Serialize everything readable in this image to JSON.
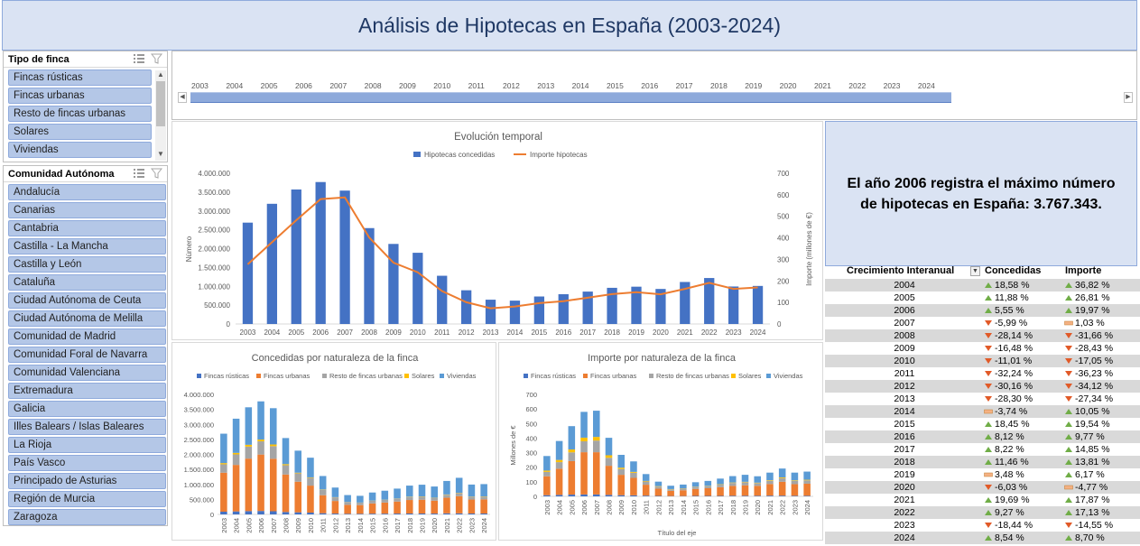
{
  "title": "Análisis de Hipotecas en España (2003-2024)",
  "slicer_tipo": {
    "header": "Tipo de finca",
    "items": [
      "Fincas rústicas",
      "Fincas urbanas",
      "Resto de fincas urbanas",
      "Solares",
      "Viviendas"
    ]
  },
  "slicer_ccaa": {
    "header": "Comunidad Autónoma",
    "items": [
      "Andalucía",
      "Canarias",
      "Cantabria",
      "Castilla - La Mancha",
      "Castilla y León",
      "Cataluña",
      "Ciudad Autónoma de Ceuta",
      "Ciudad Autónoma de Melilla",
      "Comunidad de Madrid",
      "Comunidad Foral de Navarra",
      "Comunidad Valenciana",
      "Extremadura",
      "Galicia",
      "Illes Balears / Islas Baleares",
      "La Rioja",
      "País Vasco",
      "Principado de Asturias",
      "Región de Murcia",
      "Zaragoza"
    ]
  },
  "timeline": {
    "years": [
      "2003",
      "2004",
      "2005",
      "2006",
      "2007",
      "2008",
      "2009",
      "2010",
      "2011",
      "2012",
      "2013",
      "2014",
      "2015",
      "2016",
      "2017",
      "2018",
      "2019",
      "2020",
      "2021",
      "2022",
      "2023",
      "2024"
    ]
  },
  "insight_text": "El año 2006 registra el máximo número de hipotecas en España: 3.767.343.",
  "colors": {
    "bar_blue": "#4472c4",
    "line_orange": "#ed7d31",
    "rusticas": "#4472c4",
    "urbanas": "#ed7d31",
    "resto": "#a5a5a5",
    "solares": "#ffc000",
    "viviendas": "#5b9bd5",
    "up": "#70ad47",
    "down": "#e15a28",
    "flat": "#f4b183"
  },
  "chart_data": [
    {
      "type": "bar",
      "title": "Evolución temporal",
      "categories": [
        "2003",
        "2004",
        "2005",
        "2006",
        "2007",
        "2008",
        "2009",
        "2010",
        "2011",
        "2012",
        "2013",
        "2014",
        "2015",
        "2016",
        "2017",
        "2018",
        "2019",
        "2020",
        "2021",
        "2022",
        "2023",
        "2024"
      ],
      "series": [
        {
          "name": "Hipotecas concedidas",
          "axis": "left",
          "type": "bar",
          "values": [
            2690000,
            3190000,
            3570000,
            3767343,
            3540000,
            2545000,
            2125000,
            1890000,
            1280000,
            895000,
            645000,
            620000,
            730000,
            790000,
            860000,
            960000,
            990000,
            930000,
            1115000,
            1220000,
            995000,
            1010000
          ]
        },
        {
          "name": "Importe hipotecas",
          "axis": "right",
          "type": "line",
          "values": [
            277,
            380,
            482,
            580,
            588,
            402,
            285,
            240,
            153,
            101,
            73,
            81,
            97,
            106,
            122,
            139,
            148,
            138,
            163,
            191,
            163,
            170
          ]
        }
      ],
      "ylabel": "Número",
      "y2label": "Importe (millones de €)",
      "yticks": [
        "0",
        "500.000",
        "1.000.000",
        "1.500.000",
        "2.000.000",
        "2.500.000",
        "3.000.000",
        "3.500.000",
        "4.000.000"
      ],
      "y2ticks": [
        "0",
        "100",
        "200",
        "300",
        "400",
        "500",
        "600",
        "700"
      ],
      "ylim": [
        0,
        4000000
      ],
      "y2lim": [
        0,
        700
      ],
      "legend": "top"
    },
    {
      "type": "bar",
      "stacked": true,
      "title": "Concedidas por naturaleza de la finca",
      "categories": [
        "2003",
        "2004",
        "2005",
        "2006",
        "2007",
        "2008",
        "2009",
        "2010",
        "2011",
        "2012",
        "2013",
        "2014",
        "2015",
        "2016",
        "2017",
        "2018",
        "2019",
        "2020",
        "2021",
        "2022",
        "2023",
        "2024"
      ],
      "series": [
        {
          "name": "Fincas rústicas",
          "values": [
            90000,
            100000,
            110000,
            115000,
            105000,
            80000,
            70000,
            60000,
            40000,
            28000,
            20000,
            20000,
            25000,
            25000,
            28000,
            30000,
            30000,
            28000,
            35000,
            35000,
            30000,
            30000
          ]
        },
        {
          "name": "Fincas urbanas",
          "values": [
            1300000,
            1550000,
            1750000,
            1880000,
            1750000,
            1250000,
            1020000,
            900000,
            600000,
            420000,
            300000,
            290000,
            340000,
            370000,
            400000,
            450000,
            460000,
            430000,
            520000,
            570000,
            465000,
            470000
          ]
        },
        {
          "name": "Resto de fincas urbanas",
          "values": [
            280000,
            350000,
            400000,
            440000,
            420000,
            310000,
            280000,
            260000,
            180000,
            120000,
            90000,
            80000,
            90000,
            90000,
            95000,
            100000,
            100000,
            90000,
            100000,
            105000,
            90000,
            90000
          ]
        },
        {
          "name": "Solares",
          "values": [
            40000,
            50000,
            60000,
            60000,
            55000,
            35000,
            20000,
            15000,
            10000,
            7000,
            5000,
            5000,
            5000,
            5000,
            7000,
            10000,
            10000,
            7000,
            10000,
            10000,
            10000,
            10000
          ]
        },
        {
          "name": "Viviendas",
          "values": [
            980000,
            1140000,
            1250000,
            1272343,
            1210000,
            870000,
            735000,
            655000,
            450000,
            320000,
            230000,
            225000,
            270000,
            300000,
            330000,
            370000,
            390000,
            375000,
            450000,
            500000,
            400000,
            410000
          ]
        }
      ],
      "yticks": [
        "0",
        "500.000",
        "1.000.000",
        "1.500.000",
        "2.000.000",
        "2.500.000",
        "3.000.000",
        "3.500.000",
        "4.000.000"
      ],
      "ylim": [
        0,
        4000000
      ],
      "legend": "top"
    },
    {
      "type": "bar",
      "stacked": true,
      "title": "Importe por naturaleza de la finca",
      "categories": [
        "2003",
        "2004",
        "2005",
        "2006",
        "2007",
        "2008",
        "2009",
        "2010",
        "2011",
        "2012",
        "2013",
        "2014",
        "2015",
        "2016",
        "2017",
        "2018",
        "2019",
        "2020",
        "2021",
        "2022",
        "2023",
        "2024"
      ],
      "series": [
        {
          "name": "Fincas rústicas",
          "values": [
            8,
            10,
            12,
            13,
            13,
            10,
            8,
            7,
            5,
            3,
            2,
            2,
            3,
            3,
            3,
            4,
            4,
            4,
            5,
            5,
            4,
            4
          ]
        },
        {
          "name": "Fincas urbanas",
          "values": [
            130,
            180,
            230,
            290,
            290,
            200,
            140,
            120,
            75,
            50,
            36,
            40,
            48,
            53,
            60,
            68,
            72,
            68,
            80,
            95,
            80,
            83
          ]
        },
        {
          "name": "Resto de fincas urbanas",
          "values": [
            30,
            45,
            60,
            75,
            80,
            55,
            40,
            35,
            22,
            14,
            10,
            11,
            13,
            14,
            17,
            20,
            21,
            19,
            22,
            25,
            22,
            23
          ]
        },
        {
          "name": "Solares",
          "values": [
            9,
            15,
            20,
            25,
            25,
            17,
            9,
            6,
            4,
            3,
            2,
            2,
            2,
            2,
            3,
            3,
            3,
            3,
            4,
            5,
            4,
            4
          ]
        },
        {
          "name": "Viviendas",
          "values": [
            100,
            130,
            160,
            177,
            180,
            120,
            88,
            72,
            47,
            31,
            23,
            26,
            31,
            34,
            39,
            44,
            48,
            44,
            52,
            61,
            53,
            56
          ]
        }
      ],
      "ylabel": "Millones de €",
      "xlabel": "Título del eje",
      "yticks": [
        "0",
        "100",
        "200",
        "300",
        "400",
        "500",
        "600",
        "700"
      ],
      "ylim": [
        0,
        700
      ],
      "legend": "top"
    }
  ],
  "growth_table": {
    "headers": [
      "Crecimiento Interanual",
      "Concedidas",
      "Importe"
    ],
    "rows": [
      {
        "year": "2004",
        "c": "18,58 %",
        "cd": "up",
        "i": "36,82 %",
        "id": "up"
      },
      {
        "year": "2005",
        "c": "11,88 %",
        "cd": "up",
        "i": "26,81 %",
        "id": "up"
      },
      {
        "year": "2006",
        "c": "5,55 %",
        "cd": "up",
        "i": "19,97 %",
        "id": "up"
      },
      {
        "year": "2007",
        "c": "-5,99 %",
        "cd": "down",
        "i": "1,03 %",
        "id": "flat"
      },
      {
        "year": "2008",
        "c": "-28,14 %",
        "cd": "down",
        "i": "-31,66 %",
        "id": "down"
      },
      {
        "year": "2009",
        "c": "-16,48 %",
        "cd": "down",
        "i": "-28,43 %",
        "id": "down"
      },
      {
        "year": "2010",
        "c": "-11,01 %",
        "cd": "down",
        "i": "-17,05 %",
        "id": "down"
      },
      {
        "year": "2011",
        "c": "-32,24 %",
        "cd": "down",
        "i": "-36,23 %",
        "id": "down"
      },
      {
        "year": "2012",
        "c": "-30,16 %",
        "cd": "down",
        "i": "-34,12 %",
        "id": "down"
      },
      {
        "year": "2013",
        "c": "-28,30 %",
        "cd": "down",
        "i": "-27,34 %",
        "id": "down"
      },
      {
        "year": "2014",
        "c": "-3,74 %",
        "cd": "flat",
        "i": "10,05 %",
        "id": "up"
      },
      {
        "year": "2015",
        "c": "18,45 %",
        "cd": "up",
        "i": "19,54 %",
        "id": "up"
      },
      {
        "year": "2016",
        "c": "8,12 %",
        "cd": "up",
        "i": "9,77 %",
        "id": "up"
      },
      {
        "year": "2017",
        "c": "8,22 %",
        "cd": "up",
        "i": "14,85 %",
        "id": "up"
      },
      {
        "year": "2018",
        "c": "11,46 %",
        "cd": "up",
        "i": "13,81 %",
        "id": "up"
      },
      {
        "year": "2019",
        "c": "3,48 %",
        "cd": "flat",
        "i": "6,17 %",
        "id": "up"
      },
      {
        "year": "2020",
        "c": "-6,03 %",
        "cd": "down",
        "i": "-4,77 %",
        "id": "flat"
      },
      {
        "year": "2021",
        "c": "19,69 %",
        "cd": "up",
        "i": "17,87 %",
        "id": "up"
      },
      {
        "year": "2022",
        "c": "9,27 %",
        "cd": "up",
        "i": "17,13 %",
        "id": "up"
      },
      {
        "year": "2023",
        "c": "-18,44 %",
        "cd": "down",
        "i": "-14,55 %",
        "id": "down"
      },
      {
        "year": "2024",
        "c": "8,54 %",
        "cd": "up",
        "i": "8,70 %",
        "id": "up"
      }
    ]
  }
}
